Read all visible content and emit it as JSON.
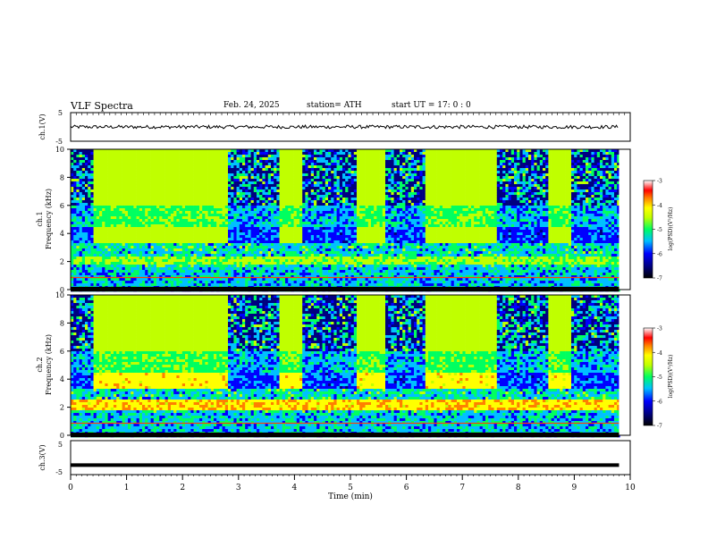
{
  "header": {
    "title": "VLF  Spectra",
    "date": "Feb. 24, 2025",
    "station": "station= ATH",
    "start_ut": "start  UT  =    17: 0  : 0"
  },
  "axes": {
    "ch1_label": "ch.1(V)",
    "ch2_label": "ch.2",
    "ch3_label": "ch.3(V)",
    "freq_label": "Frequency  (kHz)",
    "xlabel": "Time  (min)",
    "colorbar_label": "log(PSD)(V²/Hz)"
  },
  "colors": {
    "colormap": [
      "#000080",
      "#0000ff",
      "#00c0ff",
      "#00ff60",
      "#c0ff00",
      "#ffff00",
      "#ff8000",
      "#ff0000",
      "#ffffff"
    ]
  },
  "chart_data": [
    {
      "id": "ch1-waveform",
      "type": "line",
      "ylabel": "ch.1(V)",
      "ylim": [
        -5,
        5
      ],
      "yticks": [
        "5",
        "-5"
      ],
      "xlim": [
        0,
        10
      ],
      "mean_value": 0,
      "approx_amplitude": 1
    },
    {
      "id": "ch1-spectrogram",
      "type": "heatmap",
      "ylabel": "Frequency  (kHz)",
      "xlim": [
        0,
        10
      ],
      "ylim": [
        0,
        10
      ],
      "yticks": [
        "0",
        "2",
        "4",
        "6",
        "8",
        "10"
      ],
      "colorbar": {
        "label": "log(PSD)(V²/Hz)",
        "range": [
          -7,
          -3
        ],
        "ticks": [
          "-3",
          "-4",
          "-5",
          "-6",
          "-7"
        ]
      },
      "quiet_intervals_min": [
        [
          0.4,
          2.8
        ],
        [
          3.7,
          4.1
        ],
        [
          5.1,
          5.6
        ],
        [
          6.3,
          7.6
        ],
        [
          8.5,
          8.9
        ]
      ]
    },
    {
      "id": "ch2-spectrogram",
      "type": "heatmap",
      "ylabel": "Frequency  (kHz)",
      "xlim": [
        0,
        10
      ],
      "ylim": [
        0,
        10
      ],
      "yticks": [
        "0",
        "2",
        "4",
        "6",
        "8",
        "10"
      ],
      "colorbar": {
        "label": "log(PSD)(V²/Hz)",
        "range": [
          -7,
          -3
        ],
        "ticks": [
          "-3",
          "-4",
          "-5",
          "-6",
          "-7"
        ]
      },
      "quiet_intervals_min": [
        [
          0.4,
          2.8
        ],
        [
          3.7,
          4.1
        ],
        [
          5.1,
          5.6
        ],
        [
          6.3,
          7.6
        ],
        [
          8.5,
          8.9
        ]
      ]
    },
    {
      "id": "ch3-waveform",
      "type": "line",
      "ylabel": "ch.3(V)",
      "ylim": [
        -5,
        5
      ],
      "yticks": [
        "5",
        "-5"
      ],
      "xlim": [
        0,
        10
      ],
      "xlabel": "Time  (min)",
      "xticks": [
        "0",
        "1",
        "2",
        "3",
        "4",
        "5",
        "6",
        "7",
        "8",
        "9",
        "10"
      ],
      "mean_value": -2.2
    }
  ]
}
